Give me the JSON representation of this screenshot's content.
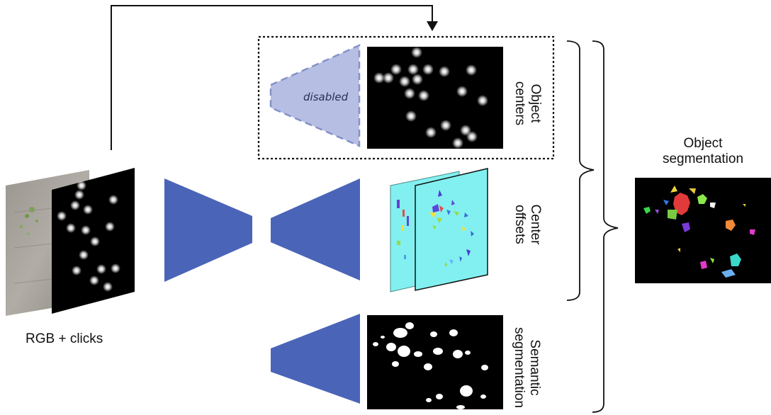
{
  "labels": {
    "input": "RGB + clicks",
    "disabled": "disabled",
    "object_centers": [
      "Object",
      "centers"
    ],
    "center_offsets": [
      "Center",
      "offsets"
    ],
    "semantic_segmentation": [
      "Semantic",
      "segmentation"
    ],
    "object_segmentation": [
      "Object",
      "segmentation"
    ]
  },
  "colors": {
    "network": "#4a64b8",
    "disabled_fill": "#b6bfe3",
    "disabled_stroke": "#8491c7",
    "offsets_fill": "#82f0f0",
    "line": "#111111"
  }
}
